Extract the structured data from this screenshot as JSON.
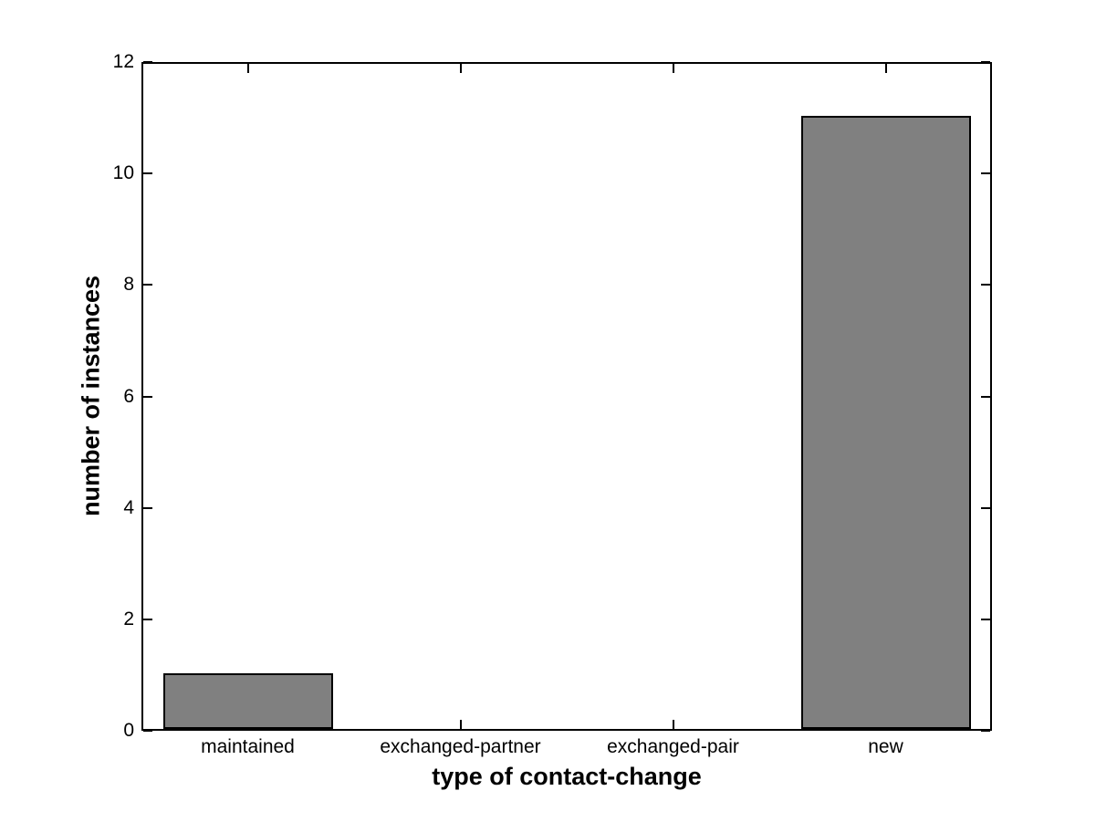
{
  "chart_data": {
    "type": "bar",
    "categories": [
      "maintained",
      "exchanged-partner",
      "exchanged-pair",
      "new"
    ],
    "values": [
      1,
      0,
      0,
      11
    ],
    "title": "",
    "xlabel": "type of contact-change",
    "ylabel": "number of instances",
    "ylim": [
      0,
      12
    ],
    "yticks": [
      0,
      2,
      4,
      6,
      8,
      10,
      12
    ],
    "grid": false,
    "legend": null,
    "bar_width_fraction": 0.8,
    "colors": {
      "bar_fill": "#808080",
      "bar_edge": "#000000",
      "axis": "#000000",
      "background": "#ffffff",
      "text": "#000000"
    }
  }
}
